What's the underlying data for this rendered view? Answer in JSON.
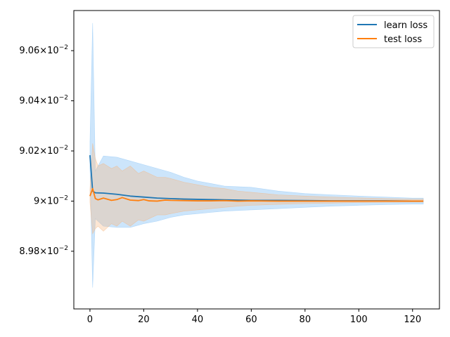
{
  "chart_data": {
    "type": "line",
    "title": "",
    "xlabel": "",
    "ylabel": "",
    "xlim": [
      -6,
      130
    ],
    "ylim": [
      0.08957,
      0.09076
    ],
    "x_ticks": [
      {
        "value": 0,
        "label": "0"
      },
      {
        "value": 20,
        "label": "20"
      },
      {
        "value": 40,
        "label": "40"
      },
      {
        "value": 60,
        "label": "60"
      },
      {
        "value": 80,
        "label": "80"
      },
      {
        "value": 100,
        "label": "100"
      },
      {
        "value": 120,
        "label": "120"
      }
    ],
    "y_ticks": [
      {
        "value": 0.0898,
        "mantissa": "8.98",
        "base": "10",
        "exponent": "−2"
      },
      {
        "value": 0.09,
        "mantissa": "9",
        "base": "10",
        "exponent": "−2"
      },
      {
        "value": 0.0902,
        "mantissa": "9.02",
        "base": "10",
        "exponent": "−2"
      },
      {
        "value": 0.0904,
        "mantissa": "9.04",
        "base": "10",
        "exponent": "−2"
      },
      {
        "value": 0.0906,
        "mantissa": "9.06",
        "base": "10",
        "exponent": "−2"
      }
    ],
    "grid": false,
    "legend_position": "top-right",
    "series": [
      {
        "name": "learn loss",
        "color": "#1f77b4",
        "band_color": "#8fc6f7",
        "band_opacity": 0.45,
        "x": [
          0,
          1,
          2,
          5,
          10,
          15,
          20,
          25,
          30,
          35,
          40,
          45,
          50,
          60,
          70,
          80,
          90,
          100,
          110,
          120,
          124
        ],
        "y": [
          0.090183,
          0.09004,
          0.090033,
          0.090032,
          0.090027,
          0.09002,
          0.090016,
          0.090012,
          0.09001,
          0.090008,
          0.090007,
          0.090006,
          0.090005,
          0.090003,
          0.090003,
          0.090002,
          0.090001,
          0.090001,
          0.090001,
          0.09,
          0.09
        ],
        "upper": [
          0.090235,
          0.09071,
          0.09012,
          0.09018,
          0.090175,
          0.09016,
          0.090145,
          0.09013,
          0.090115,
          0.090095,
          0.09008,
          0.09007,
          0.09006,
          0.090055,
          0.09004,
          0.09003,
          0.090025,
          0.09002,
          0.090016,
          0.090012,
          0.090012
        ],
        "lower": [
          0.090131,
          0.089655,
          0.08993,
          0.0899,
          0.089895,
          0.089895,
          0.08991,
          0.08992,
          0.089935,
          0.089945,
          0.08995,
          0.089955,
          0.08996,
          0.089965,
          0.08997,
          0.089975,
          0.08998,
          0.089983,
          0.089986,
          0.089988,
          0.089988
        ]
      },
      {
        "name": "test loss",
        "color": "#ff7f0e",
        "band_color": "#f5b680",
        "band_opacity": 0.35,
        "x": [
          0,
          1,
          2,
          3,
          5,
          8,
          10,
          12,
          15,
          18,
          20,
          22,
          25,
          28,
          30,
          35,
          40,
          45,
          50,
          55,
          60,
          70,
          80,
          90,
          100,
          110,
          120,
          124
        ],
        "y": [
          0.09002,
          0.09005,
          0.09001,
          0.090005,
          0.090012,
          0.090003,
          0.090006,
          0.090014,
          0.090004,
          0.090002,
          0.090006,
          0.090001,
          0.09,
          0.090004,
          0.090003,
          0.090002,
          0.090001,
          0.090001,
          0.090002,
          0.09,
          0.090001,
          0.09,
          0.09,
          0.09,
          0.09,
          0.09,
          0.09,
          0.09
        ],
        "upper": [
          0.090045,
          0.09023,
          0.09017,
          0.09014,
          0.09015,
          0.09013,
          0.09014,
          0.09012,
          0.09014,
          0.09011,
          0.09012,
          0.09011,
          0.090095,
          0.090095,
          0.09009,
          0.090075,
          0.090065,
          0.090055,
          0.09005,
          0.09004,
          0.090035,
          0.090025,
          0.09002,
          0.090016,
          0.090013,
          0.09001,
          0.090008,
          0.090008
        ],
        "lower": [
          0.089995,
          0.08987,
          0.08989,
          0.0899,
          0.08988,
          0.08991,
          0.0899,
          0.08992,
          0.0899,
          0.089925,
          0.08992,
          0.08993,
          0.089945,
          0.089945,
          0.08995,
          0.08996,
          0.089965,
          0.08997,
          0.089975,
          0.08998,
          0.089983,
          0.089987,
          0.08999,
          0.089992,
          0.089994,
          0.089995,
          0.089996,
          0.089996
        ]
      }
    ]
  }
}
